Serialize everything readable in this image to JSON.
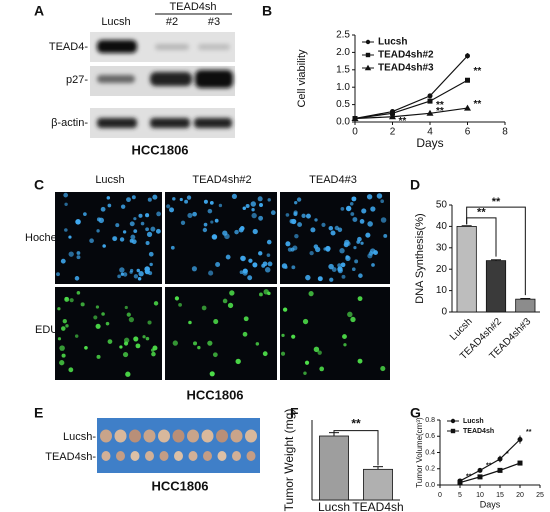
{
  "panel_a": {
    "letter": "A",
    "group": "TEAD4sh",
    "columns": [
      "Lucsh",
      "#2",
      "#3"
    ],
    "rows": [
      "TEAD4-",
      "p27-",
      "β-actin-"
    ],
    "caption": "HCC1806"
  },
  "panel_c": {
    "letter": "C",
    "columns": [
      "Lucsh",
      "TEAD4sh#2",
      "TEAD4#3"
    ],
    "rows": [
      "Hochest",
      "EDU"
    ],
    "caption": "HCC1806"
  },
  "panel_e": {
    "letter": "E",
    "rows": [
      "Lucsh-",
      "TEAD4sh-"
    ],
    "caption": "HCC1806"
  },
  "chart_data": [
    {
      "letter": "B",
      "type": "line",
      "xlabel": "Days",
      "ylabel": "Cell viability",
      "x": [
        0,
        2,
        4,
        6
      ],
      "xlim": [
        0,
        8
      ],
      "xticks": [
        0,
        2,
        4,
        6,
        8
      ],
      "ylim": [
        0,
        2.5
      ],
      "yticks": [
        {
          "value": 0,
          "label": "0.0"
        },
        0.5,
        {
          "value": 1,
          "label": "1.0"
        },
        1.5,
        {
          "value": 2,
          "label": "2.0"
        },
        2.5
      ],
      "legend": "upper left",
      "series": [
        {
          "name": "Lucsh",
          "color": "#111111",
          "values": [
            0.1,
            0.3,
            0.75,
            1.9
          ],
          "errors": [
            0.01,
            0.02,
            0.03,
            0.08
          ]
        },
        {
          "name": "TEAD4sh#2",
          "color": "#111111",
          "values": [
            0.1,
            0.25,
            0.6,
            1.2
          ],
          "errors": [
            0.01,
            0.02,
            0.03,
            0.05
          ]
        },
        {
          "name": "TEAD4sh#3",
          "color": "#111111",
          "values": [
            0.1,
            0.15,
            0.25,
            0.4
          ],
          "errors": [
            0.01,
            0.01,
            0.02,
            0.02
          ]
        }
      ],
      "annotations": [
        "**",
        "**",
        "**",
        "**",
        "**"
      ]
    },
    {
      "letter": "D",
      "type": "bar",
      "ylabel": "DNA Synthesis(%)",
      "categories": [
        "Lucsh",
        "TEAD4sh#2",
        "TEAD4sh#3"
      ],
      "values": [
        40,
        24,
        6
      ],
      "errors": [
        0.3,
        0.4,
        0.3
      ],
      "colors": [
        "#bdbdbd",
        "#3a3a3a",
        "#8c8c8c"
      ],
      "ylim": [
        0,
        50
      ],
      "yticks": [
        0,
        10,
        20,
        30,
        40,
        50
      ],
      "annotations": [
        "**",
        "**"
      ]
    },
    {
      "letter": "F",
      "type": "bar",
      "ylabel": "Tumor Weight (mg)",
      "categories": [
        "Lucsh",
        "TEAD4sh"
      ],
      "values": [
        48,
        23
      ],
      "errors": [
        2.5,
        2
      ],
      "colors": [
        "#9e9e9e",
        "#b0b0b0"
      ],
      "ylim": [
        0,
        60
      ],
      "annotations": [
        "**"
      ]
    },
    {
      "letter": "G",
      "type": "line",
      "xlabel": "Days",
      "ylabel": "Tumor Volume(cm³)",
      "x": [
        5,
        10,
        15,
        20
      ],
      "xlim": [
        0,
        25
      ],
      "xticks": [
        0,
        5,
        10,
        15,
        20,
        25
      ],
      "ylim": [
        0,
        0.8
      ],
      "yticks": [
        {
          "value": 0,
          "label": "0.0"
        },
        0.2,
        0.4,
        0.6,
        0.8
      ],
      "legend": "upper left",
      "series": [
        {
          "name": "Lucsh",
          "color": "#111111",
          "values": [
            0.05,
            0.18,
            0.32,
            0.56
          ],
          "errors": [
            0.01,
            0.02,
            0.04,
            0.05
          ]
        },
        {
          "name": "TEAD4sh",
          "color": "#111111",
          "values": [
            0.03,
            0.1,
            0.18,
            0.27
          ],
          "errors": [
            0.01,
            0.01,
            0.02,
            0.02
          ]
        }
      ],
      "annotations": [
        "**",
        "**",
        "*",
        "**"
      ]
    }
  ]
}
